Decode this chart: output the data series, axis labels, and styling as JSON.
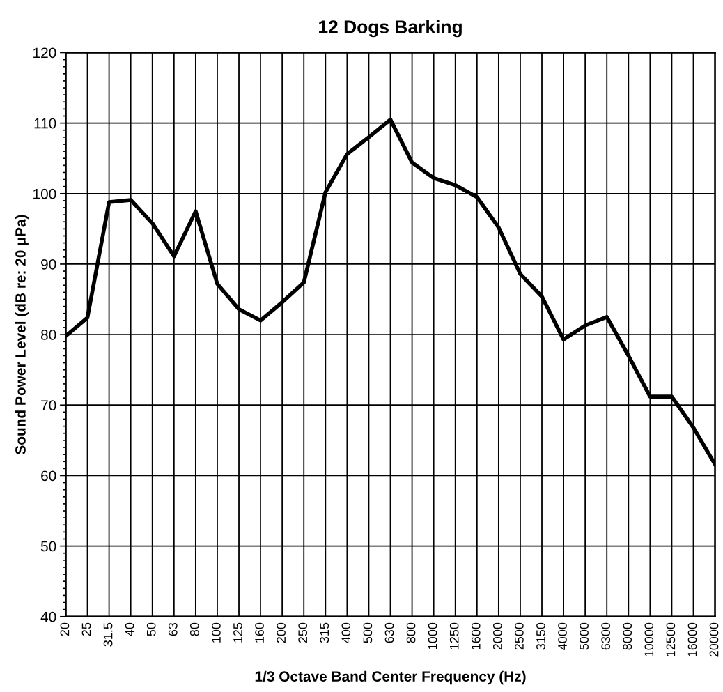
{
  "chart_data": {
    "type": "line",
    "title": "12 Dogs Barking",
    "xlabel": "1/3 Octave Band Center Frequency (Hz)",
    "ylabel": "Sound Power Level (dB re: 20 μPa)",
    "categories": [
      "20",
      "25",
      "31.5",
      "40",
      "50",
      "63",
      "80",
      "100",
      "125",
      "160",
      "200",
      "250",
      "315",
      "400",
      "500",
      "630",
      "800",
      "1000",
      "1250",
      "1600",
      "2000",
      "2500",
      "3150",
      "4000",
      "5000",
      "6300",
      "8000",
      "10000",
      "12500",
      "16000",
      "20000"
    ],
    "series": [
      {
        "color": "#000000",
        "values": [
          79.8,
          82.4,
          98.8,
          99.1,
          95.8,
          91.1,
          97.5,
          87.2,
          83.6,
          82.0,
          84.6,
          87.4,
          100.2,
          105.6,
          108.0,
          110.5,
          104.4,
          102.2,
          101.2,
          99.5,
          95.2,
          88.6,
          85.4,
          79.3,
          81.3,
          82.5,
          77.0,
          71.2,
          71.2,
          66.8,
          61.6
        ]
      }
    ],
    "ylim": [
      40,
      120
    ],
    "yticks": [
      40,
      50,
      60,
      70,
      80,
      90,
      100,
      110,
      120
    ],
    "grid": true,
    "legend": false,
    "marker": "none",
    "line_style": "solid"
  }
}
